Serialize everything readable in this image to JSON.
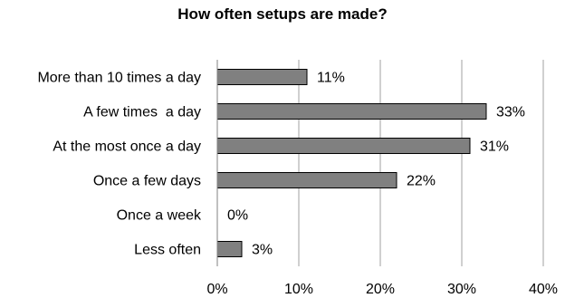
{
  "chart_data": {
    "type": "bar",
    "orientation": "horizontal",
    "title": "How often setups are made?",
    "categories": [
      "More than 10 times a day",
      "A few times  a day",
      "At the most once a day",
      "Once a few days",
      "Once a week",
      "Less often"
    ],
    "values": [
      11,
      33,
      31,
      22,
      0,
      3
    ],
    "data_labels": [
      "11%",
      "33%",
      "31%",
      "22%",
      "0%",
      "3%"
    ],
    "xlim": [
      0,
      40
    ],
    "xticks": [
      0,
      10,
      20,
      30,
      40
    ],
    "xtick_labels": [
      "0%",
      "10%",
      "20%",
      "30%",
      "40%"
    ],
    "grid": "vertical",
    "bar_color": "#808080",
    "bar_edge_color": "#000000"
  }
}
